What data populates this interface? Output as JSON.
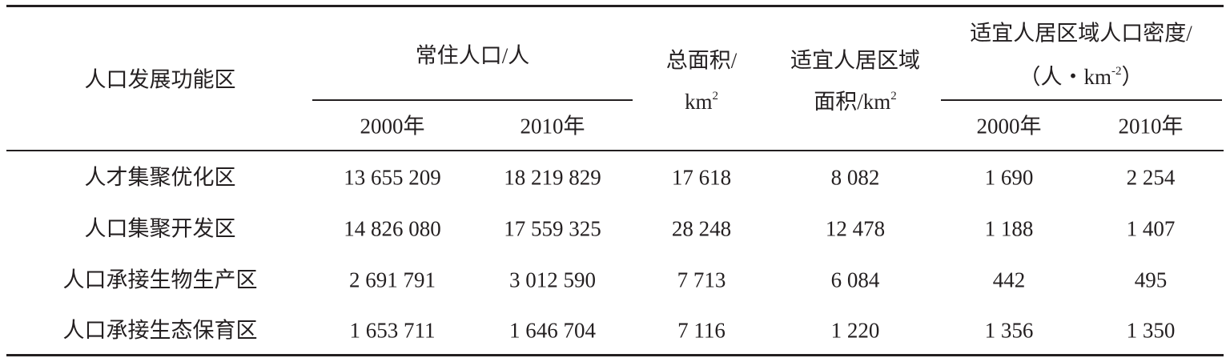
{
  "table": {
    "headers": {
      "zone": "人口发展功能区",
      "resident_population": "常住人口/人",
      "total_area_line1": "总面积/",
      "total_area_line2": "km",
      "total_area_sup": "2",
      "livable_area_line1": "适宜人居区域",
      "livable_area_line2": "面积/km",
      "livable_area_sup": "2",
      "density_line1": "适宜人居区域人口密度/",
      "density_line2_open": "（人・km",
      "density_sup": "-2",
      "density_line2_close": "）",
      "year_2000": "2000年",
      "year_2010": "2010年"
    },
    "rows": [
      {
        "zone": "人才集聚优化区",
        "pop_2000": "13 655 209",
        "pop_2010": "18 219 829",
        "total_area": "17 618",
        "livable_area": "8 082",
        "density_2000": "1 690",
        "density_2010": "2 254"
      },
      {
        "zone": "人口集聚开发区",
        "pop_2000": "14 826 080",
        "pop_2010": "17 559 325",
        "total_area": "28 248",
        "livable_area": "12 478",
        "density_2000": "1 188",
        "density_2010": "1 407"
      },
      {
        "zone": "人口承接生物生产区",
        "pop_2000": "2 691 791",
        "pop_2010": "3 012 590",
        "total_area": "7 713",
        "livable_area": "6 084",
        "density_2000": "442",
        "density_2010": "495"
      },
      {
        "zone": "人口承接生态保育区",
        "pop_2000": "1 653 711",
        "pop_2010": "1 646 704",
        "total_area": "7 116",
        "livable_area": "1 220",
        "density_2000": "1 356",
        "density_2010": "1 350"
      }
    ]
  }
}
